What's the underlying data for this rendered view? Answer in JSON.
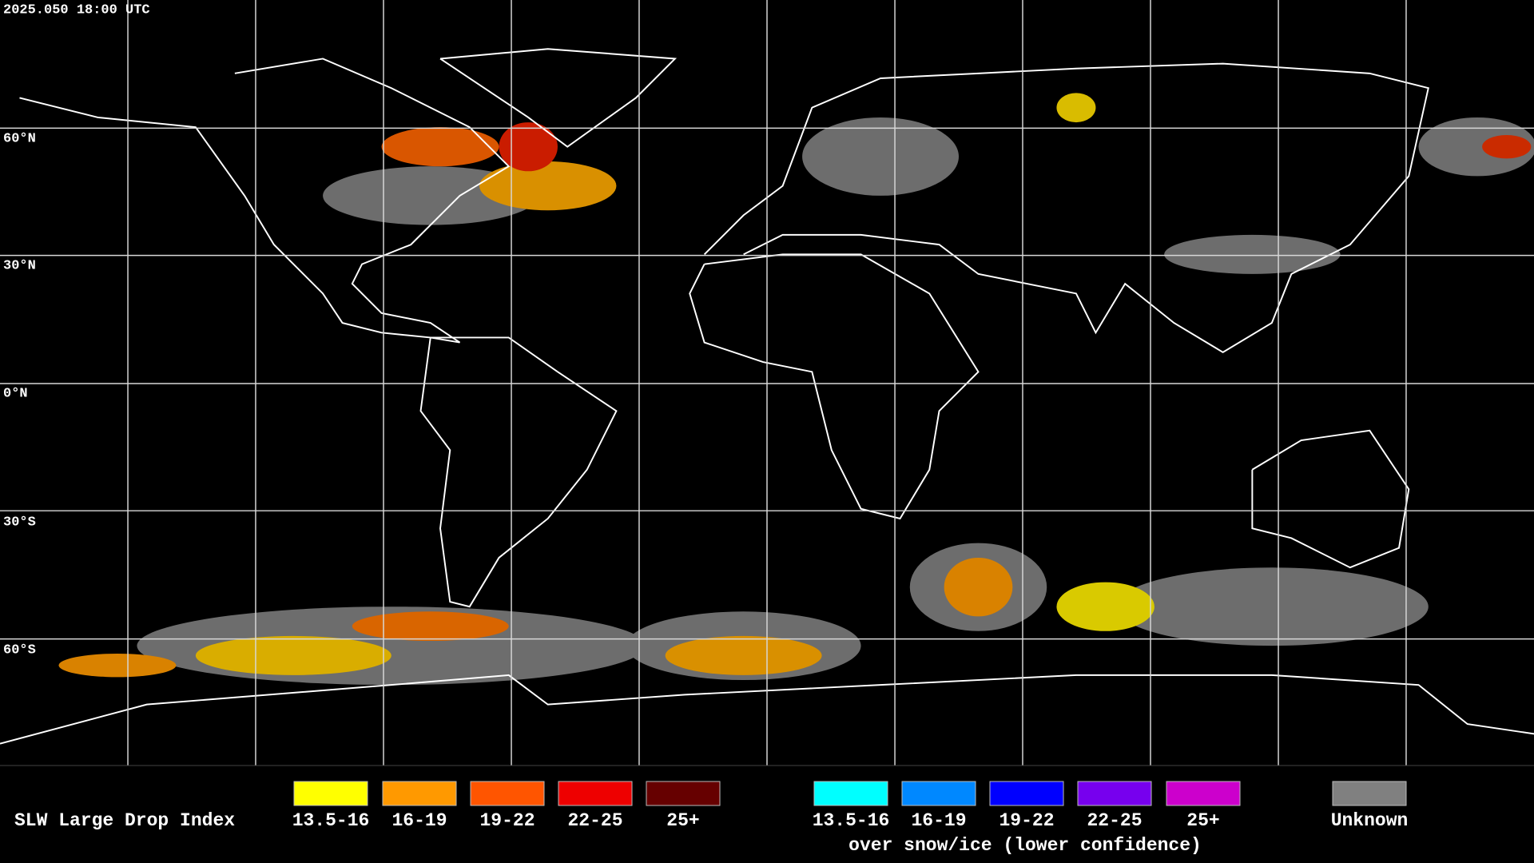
{
  "header": {
    "timestamp": "2025.050 18:00 UTC"
  },
  "map": {
    "latitude_labels": [
      "60°N",
      "30°N",
      "0°N",
      "30°S",
      "60°S"
    ]
  },
  "legend": {
    "title": "SLW Large Drop Index",
    "items": [
      {
        "label": "13.5-16",
        "color": "#ffff00"
      },
      {
        "label": "16-19",
        "color": "#ff9900"
      },
      {
        "label": "19-22",
        "color": "#ff5500"
      },
      {
        "label": "22-25",
        "color": "#ee0000"
      },
      {
        "label": "25+",
        "color": "#660000"
      }
    ],
    "snow_ice_items": [
      {
        "label": "13.5-16",
        "color": "#00ffff"
      },
      {
        "label": "16-19",
        "color": "#0088ff"
      },
      {
        "label": "19-22",
        "color": "#0000ff"
      },
      {
        "label": "22-25",
        "color": "#7700ee"
      },
      {
        "label": "25+",
        "color": "#cc00cc"
      }
    ],
    "snow_ice_caption": "over snow/ice (lower confidence)",
    "unknown": {
      "label": "Unknown",
      "color": "#808080"
    }
  }
}
